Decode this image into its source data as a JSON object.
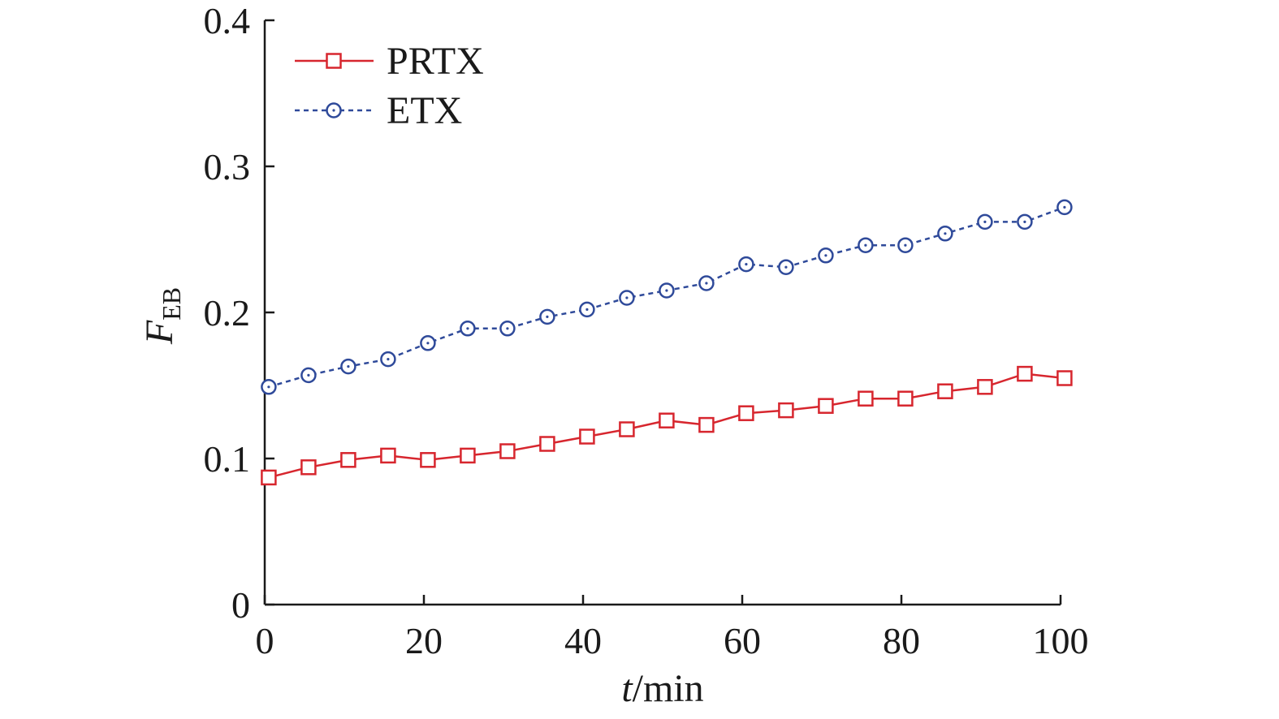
{
  "chart_data": {
    "type": "line",
    "xlabel": {
      "italic": "t",
      "rest": "/min"
    },
    "ylabel": {
      "italic": "F",
      "subscript": "EB"
    },
    "xlim": [
      0,
      100
    ],
    "ylim": [
      0,
      0.4
    ],
    "xticks": [
      0,
      20,
      40,
      60,
      80,
      100
    ],
    "xtick_labels": [
      "0",
      "20",
      "40",
      "60",
      "80",
      "100"
    ],
    "yticks": [
      0,
      0.1,
      0.2,
      0.3,
      0.4
    ],
    "ytick_labels": [
      "0",
      "0.1",
      "0.2",
      "0.3",
      "0.4"
    ],
    "grid": false,
    "legend_position": "top-left",
    "x": [
      0.5,
      5.5,
      10.5,
      15.5,
      20.5,
      25.5,
      30.5,
      35.5,
      40.5,
      45.5,
      50.5,
      55.5,
      60.5,
      65.5,
      70.5,
      75.5,
      80.5,
      85.5,
      90.5,
      95.5,
      100.5
    ],
    "series": [
      {
        "name": "PRTX",
        "color": "#d7262e",
        "line_style": "solid",
        "marker": "square",
        "values": [
          0.087,
          0.094,
          0.099,
          0.102,
          0.099,
          0.102,
          0.105,
          0.11,
          0.115,
          0.12,
          0.126,
          0.123,
          0.131,
          0.133,
          0.136,
          0.141,
          0.141,
          0.146,
          0.149,
          0.158,
          0.155
        ]
      },
      {
        "name": "ETX",
        "color": "#2f4a9a",
        "line_style": "dashed",
        "marker": "circle",
        "values": [
          0.149,
          0.157,
          0.163,
          0.168,
          0.179,
          0.189,
          0.189,
          0.197,
          0.202,
          0.21,
          0.215,
          0.22,
          0.233,
          0.231,
          0.239,
          0.246,
          0.246,
          0.254,
          0.262,
          0.262,
          0.272
        ]
      }
    ]
  }
}
